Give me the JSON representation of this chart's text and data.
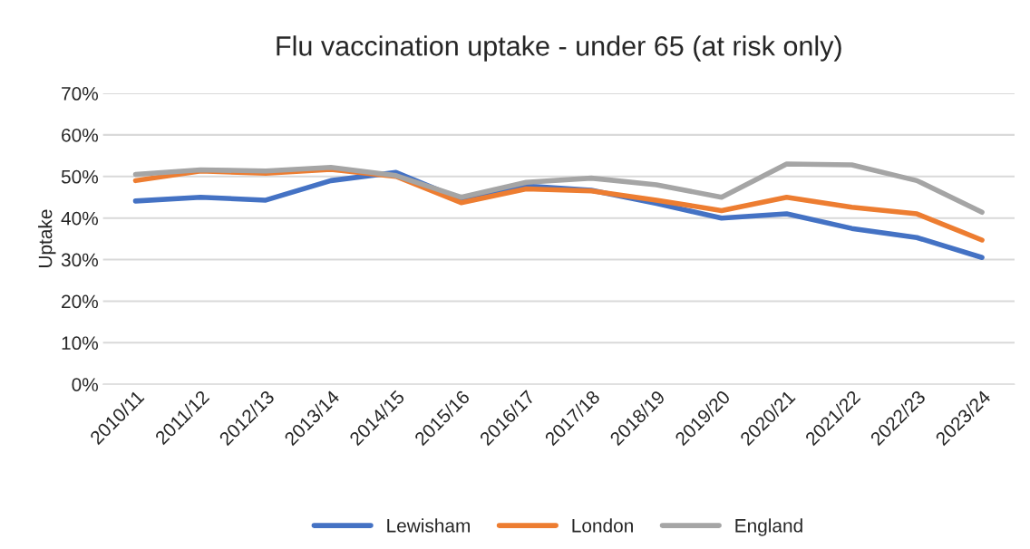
{
  "chart_data": {
    "type": "line",
    "title": "Flu vaccination uptake - under 65 (at risk only)",
    "ylabel": "Uptake",
    "categories": [
      "2010/11",
      "2011/12",
      "2012/13",
      "2013/14",
      "2014/15",
      "2015/16",
      "2016/17",
      "2017/18",
      "2018/19",
      "2019/20",
      "2020/21",
      "2021/22",
      "2022/23",
      "2023/24"
    ],
    "series": [
      {
        "name": "Lewisham",
        "color": "#4472c4",
        "values": [
          44.1,
          45,
          44.3,
          49,
          51,
          44.5,
          47.7,
          46.7,
          43.5,
          40,
          41,
          37.5,
          35.3,
          30.5
        ]
      },
      {
        "name": "London",
        "color": "#ed7d31",
        "values": [
          49,
          51.3,
          50.8,
          51.7,
          50,
          43.7,
          47,
          46.5,
          44.3,
          41.8,
          45,
          42.6,
          41,
          34.7
        ]
      },
      {
        "name": "England",
        "color": "#a5a5a5",
        "values": [
          50.5,
          51.6,
          51.3,
          52.2,
          50.2,
          45,
          48.6,
          49.6,
          48,
          45,
          53,
          52.8,
          49,
          41.4
        ]
      }
    ],
    "ylim": [
      0,
      70
    ],
    "yticks": [
      {
        "value": 0,
        "label": "0%"
      },
      {
        "value": 10,
        "label": "10%"
      },
      {
        "value": 20,
        "label": "20%"
      },
      {
        "value": 30,
        "label": "30%"
      },
      {
        "value": 40,
        "label": "40%"
      },
      {
        "value": 50,
        "label": "50%"
      },
      {
        "value": 60,
        "label": "60%"
      },
      {
        "value": 70,
        "label": "70%"
      }
    ],
    "grid": "y",
    "legend": "bottom",
    "marker": "none",
    "line_style": "solid"
  }
}
